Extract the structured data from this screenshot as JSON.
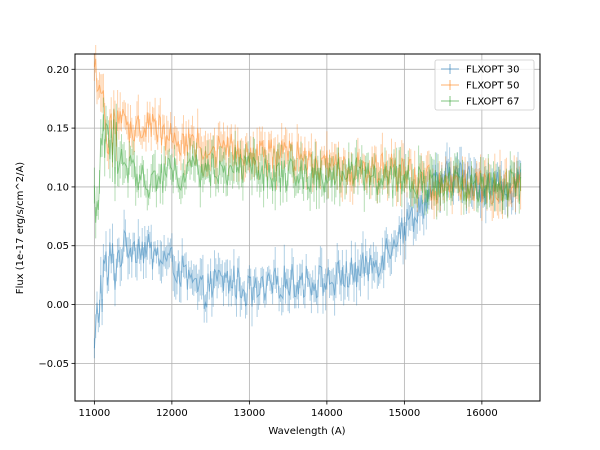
{
  "chart_data": {
    "type": "line",
    "title": "",
    "xlabel": "Wavelength (A)",
    "ylabel": "Flux (1e-17 erg/s/cm^2/A)",
    "xlim": [
      10750,
      16750
    ],
    "ylim": [
      -0.082,
      0.213
    ],
    "xticks": [
      11000,
      12000,
      13000,
      14000,
      15000,
      16000
    ],
    "yticks": [
      -0.05,
      0.0,
      0.05,
      0.1,
      0.15,
      0.2
    ],
    "xtick_labels": [
      "11000",
      "12000",
      "13000",
      "14000",
      "15000",
      "16000"
    ],
    "ytick_labels": [
      "−0.05",
      "0.00",
      "0.05",
      "0.10",
      "0.15",
      "0.20"
    ],
    "grid": true,
    "legend_position": "top-right",
    "series": [
      {
        "name": "FLXOPT 30",
        "color": "#1f77b4",
        "x": [
          11000,
          11050,
          11100,
          11200,
          11300,
          11400,
          11500,
          11600,
          11700,
          11800,
          11900,
          12000,
          12100,
          12200,
          12300,
          12400,
          12500,
          12600,
          12700,
          12800,
          12900,
          13000,
          13100,
          13200,
          13300,
          13400,
          13500,
          13600,
          13700,
          13800,
          13900,
          14000,
          14100,
          14200,
          14300,
          14400,
          14500,
          14600,
          14700,
          14800,
          14900,
          15000,
          15100,
          15200,
          15300,
          15400,
          15500,
          15600,
          15700,
          15800,
          15900,
          16000,
          16100,
          16200,
          16300,
          16400,
          16500
        ],
        "y": [
          -0.05,
          0.0,
          0.02,
          0.03,
          0.04,
          0.05,
          0.05,
          0.05,
          0.045,
          0.04,
          0.04,
          0.035,
          0.03,
          0.02,
          0.015,
          0.01,
          0.015,
          0.02,
          0.02,
          0.02,
          0.015,
          0.01,
          0.01,
          0.01,
          0.015,
          0.02,
          0.02,
          0.02,
          0.02,
          0.02,
          0.02,
          0.02,
          0.02,
          0.025,
          0.025,
          0.028,
          0.03,
          0.035,
          0.04,
          0.05,
          0.06,
          0.065,
          0.075,
          0.085,
          0.09,
          0.1,
          0.105,
          0.11,
          0.11,
          0.105,
          0.105,
          0.1,
          0.1,
          0.1,
          0.1,
          0.1,
          0.1
        ],
        "yerr": 0.012
      },
      {
        "name": "FLXOPT 50",
        "color": "#ff7f0e",
        "x": [
          11000,
          11050,
          11100,
          11200,
          11300,
          11400,
          11500,
          11600,
          11700,
          11800,
          11900,
          12000,
          12100,
          12200,
          12300,
          12400,
          12500,
          12600,
          12700,
          12800,
          12900,
          13000,
          13100,
          13200,
          13300,
          13400,
          13500,
          13600,
          13700,
          13800,
          13900,
          14000,
          14100,
          14200,
          14300,
          14400,
          14500,
          14600,
          14700,
          14800,
          14900,
          15000,
          15100,
          15200,
          15300,
          15400,
          15500,
          15600,
          15700,
          15800,
          15900,
          16000,
          16100,
          16200,
          16300,
          16400,
          16500
        ],
        "y": [
          0.185,
          0.175,
          0.16,
          0.155,
          0.155,
          0.155,
          0.15,
          0.15,
          0.15,
          0.15,
          0.145,
          0.145,
          0.14,
          0.14,
          0.135,
          0.135,
          0.13,
          0.13,
          0.13,
          0.135,
          0.13,
          0.125,
          0.125,
          0.13,
          0.125,
          0.125,
          0.125,
          0.125,
          0.12,
          0.12,
          0.12,
          0.12,
          0.115,
          0.115,
          0.115,
          0.115,
          0.115,
          0.115,
          0.115,
          0.115,
          0.11,
          0.11,
          0.11,
          0.105,
          0.105,
          0.1,
          0.1,
          0.1,
          0.1,
          0.1,
          0.1,
          0.1,
          0.1,
          0.1,
          0.1,
          0.1,
          0.1
        ],
        "yerr": 0.012
      },
      {
        "name": "FLXOPT 67",
        "color": "#2ca02c",
        "x": [
          11000,
          11050,
          11100,
          11200,
          11300,
          11400,
          11500,
          11600,
          11700,
          11800,
          11900,
          12000,
          12100,
          12200,
          12300,
          12400,
          12500,
          12600,
          12700,
          12800,
          12900,
          13000,
          13100,
          13200,
          13300,
          13400,
          13500,
          13600,
          13700,
          13800,
          13900,
          14000,
          14100,
          14200,
          14300,
          14400,
          14500,
          14600,
          14700,
          14800,
          14900,
          15000,
          15100,
          15200,
          15300,
          15400,
          15500,
          15600,
          15700,
          15800,
          15900,
          16000,
          16100,
          16200,
          16300,
          16400,
          16500
        ],
        "y": [
          0.08,
          0.11,
          0.13,
          0.14,
          0.125,
          0.12,
          0.115,
          0.11,
          0.105,
          0.105,
          0.11,
          0.11,
          0.11,
          0.11,
          0.115,
          0.115,
          0.115,
          0.115,
          0.115,
          0.12,
          0.115,
          0.115,
          0.11,
          0.11,
          0.11,
          0.11,
          0.11,
          0.11,
          0.11,
          0.11,
          0.11,
          0.11,
          0.11,
          0.11,
          0.11,
          0.11,
          0.11,
          0.11,
          0.105,
          0.105,
          0.105,
          0.105,
          0.105,
          0.105,
          0.1,
          0.1,
          0.1,
          0.1,
          0.1,
          0.1,
          0.1,
          0.1,
          0.1,
          0.1,
          0.1,
          0.1,
          0.1
        ],
        "yerr": 0.012
      }
    ]
  }
}
